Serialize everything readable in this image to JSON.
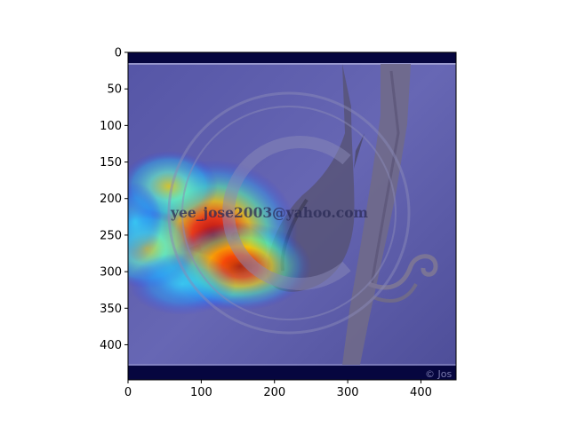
{
  "chart_data": {
    "type": "heatmap",
    "title": "",
    "xlabel": "",
    "ylabel": "",
    "xlim": [
      0,
      448
    ],
    "ylim": [
      448,
      0
    ],
    "xticks": [
      0,
      100,
      200,
      300,
      400
    ],
    "yticks": [
      0,
      50,
      100,
      150,
      200,
      250,
      300,
      350,
      400
    ],
    "colormap": "jet",
    "overlay": "grad-cam heatmap blended over photograph of a bird on a branch",
    "hotspots": [
      {
        "x": 110,
        "y": 250,
        "intensity": 1.0
      },
      {
        "x": 115,
        "y": 285,
        "intensity": 0.95
      },
      {
        "x": 140,
        "y": 285,
        "intensity": 0.85
      },
      {
        "x": 50,
        "y": 180,
        "intensity": 0.6
      },
      {
        "x": 20,
        "y": 265,
        "intensity": 0.55
      },
      {
        "x": 70,
        "y": 305,
        "intensity": 0.45
      }
    ],
    "watermark": "yee_jose2003@yahoo.com",
    "corner_mark": "© Jos"
  },
  "colors": {
    "background_dark": "#06063f",
    "overlay_blue": "#5a5aa8",
    "branch": "#6f6a88"
  }
}
